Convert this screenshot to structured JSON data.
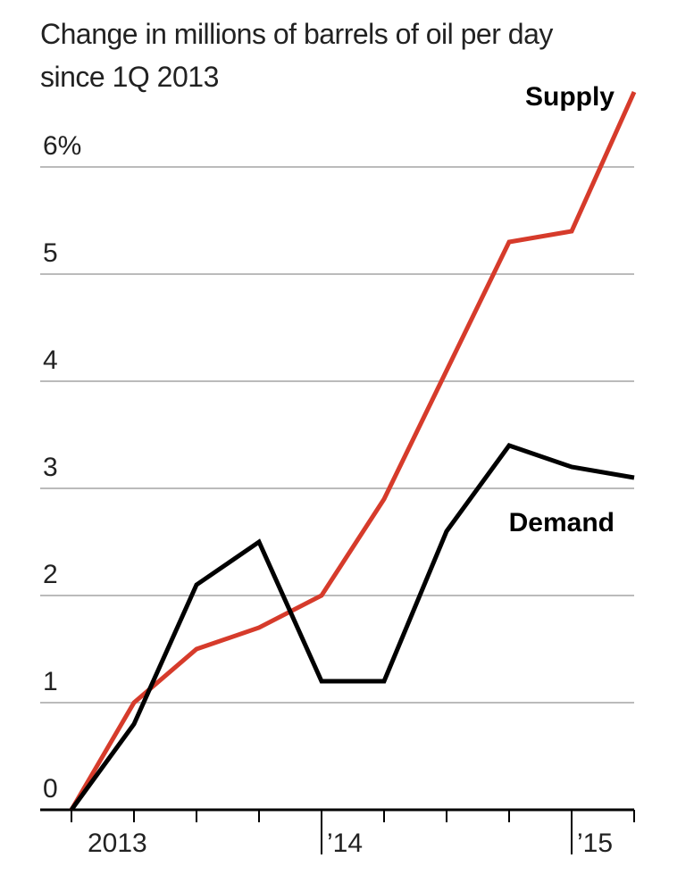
{
  "chart_data": {
    "type": "line",
    "title": "Change in millions of barrels of oil per day since 1Q 2013",
    "categories": [
      "2013",
      null,
      null,
      null,
      "’14",
      null,
      null,
      null,
      "’15",
      null
    ],
    "series": [
      {
        "name": "Supply",
        "color": "#d63b2b",
        "values": [
          0,
          1.0,
          1.5,
          1.7,
          2.0,
          2.9,
          4.1,
          5.3,
          5.4,
          6.7
        ]
      },
      {
        "name": "Demand",
        "color": "#000000",
        "values": [
          0,
          0.8,
          2.1,
          2.5,
          1.2,
          1.2,
          2.6,
          3.4,
          3.2,
          3.1
        ]
      }
    ],
    "ylim": [
      0,
      6.8
    ],
    "yticks": [
      0,
      1,
      2,
      3,
      4,
      5,
      {
        "value": 6,
        "label": "6%"
      }
    ],
    "grid": true
  }
}
